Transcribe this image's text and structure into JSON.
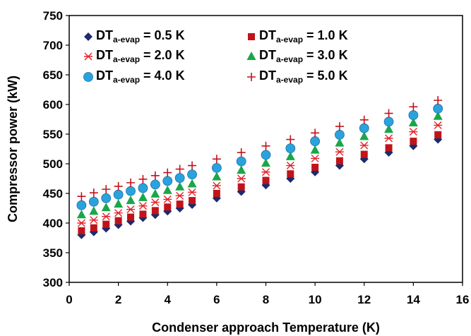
{
  "chart_data": {
    "type": "scatter",
    "xlabel": "Condenser approach Temperature (K)",
    "ylabel": "Compressor power (kW)",
    "xlim": [
      0,
      16
    ],
    "ylim": [
      300,
      750
    ],
    "x_ticks": [
      "0",
      "2",
      "4",
      "6",
      "8",
      "10",
      "12",
      "14",
      "16"
    ],
    "y_ticks": [
      "300",
      "350",
      "400",
      "450",
      "500",
      "550",
      "600",
      "650",
      "700",
      "750"
    ],
    "grid": false,
    "legend_placement": "top-left",
    "x": [
      0.5,
      1,
      1.5,
      2,
      2.5,
      3,
      3.5,
      4,
      4.5,
      5,
      6,
      7,
      8,
      9,
      10,
      11,
      12,
      13,
      14,
      15
    ],
    "series": [
      {
        "label_main": "DT",
        "label_sub": "a-evap",
        "label_tail": " = 0.5 K",
        "marker": "diamond",
        "color": "#1f2a6b",
        "values": [
          380,
          385,
          391,
          397,
          403,
          409,
          414,
          420,
          425,
          431,
          442,
          453,
          464,
          475,
          486,
          497,
          508,
          519,
          530,
          541
        ]
      },
      {
        "label_main": "DT",
        "label_sub": "a-evap",
        "label_tail": " = 1.0 K",
        "marker": "square",
        "color": "#c0141a",
        "values": [
          387,
          392,
          398,
          404,
          410,
          415,
          421,
          427,
          432,
          438,
          450,
          461,
          472,
          483,
          494,
          505,
          516,
          527,
          538,
          549
        ]
      },
      {
        "label_main": "DT",
        "label_sub": "a-evap",
        "label_tail": " = 2.0 K",
        "marker": "asterisk",
        "color": "#e8212a",
        "values": [
          400,
          405,
          411,
          417,
          423,
          429,
          435,
          440,
          446,
          452,
          463,
          475,
          486,
          497,
          509,
          520,
          531,
          543,
          554,
          565
        ]
      },
      {
        "label_main": "DT",
        "label_sub": "a-evap",
        "label_tail": " = 3.0 K",
        "marker": "triangle",
        "color": "#1aa64a",
        "values": [
          414,
          420,
          426,
          432,
          438,
          443,
          449,
          455,
          461,
          466,
          478,
          489,
          501,
          512,
          523,
          535,
          546,
          558,
          569,
          580
        ]
      },
      {
        "label_main": "DT",
        "label_sub": "a-evap",
        "label_tail": " = 4.0 K",
        "marker": "circle",
        "color": "#2aa3dd",
        "values": [
          430,
          436,
          442,
          448,
          454,
          459,
          465,
          471,
          476,
          482,
          493,
          504,
          515,
          526,
          538,
          549,
          560,
          571,
          582,
          593
        ]
      },
      {
        "label_main": "DT",
        "label_sub": "a-evap",
        "label_tail": " = 5.0 K",
        "marker": "plus",
        "color": "#c0141a",
        "values": [
          445,
          451,
          457,
          462,
          468,
          474,
          480,
          485,
          491,
          497,
          508,
          519,
          530,
          541,
          552,
          563,
          574,
          585,
          596,
          607
        ]
      }
    ]
  }
}
